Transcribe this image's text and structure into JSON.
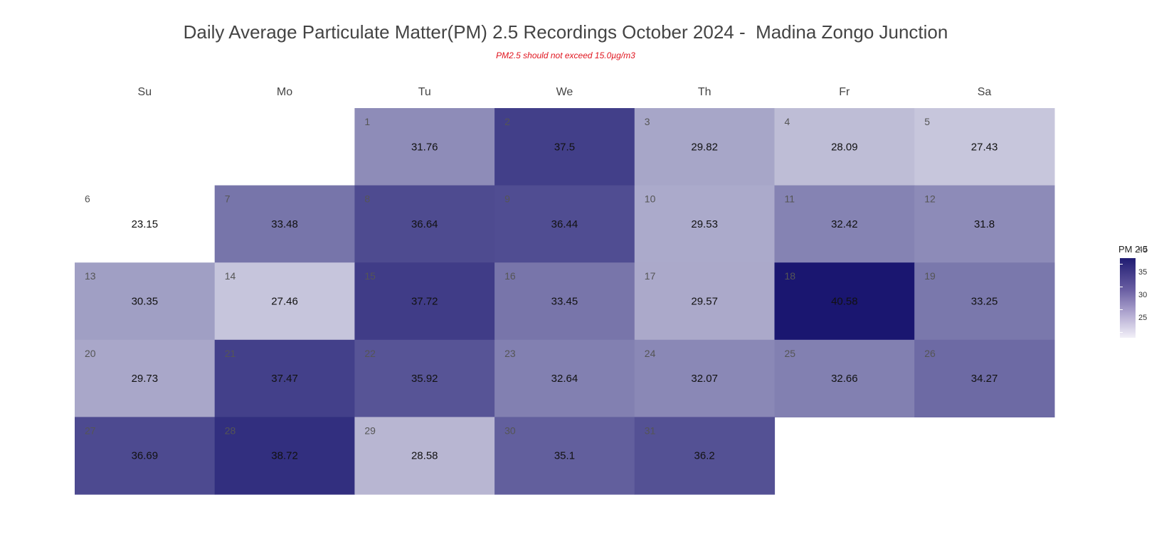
{
  "chart_data": {
    "type": "heatmap",
    "title": "Daily Average Particulate Matter(PM) 2.5 Recordings October 2024 -  Madina Zongo Junction",
    "subtitle": "PM2.5 should not exceed 15.0µg/m3",
    "weekdays": [
      "Su",
      "Mo",
      "Tu",
      "We",
      "Th",
      "Fr",
      "Sa"
    ],
    "first_weekday_index": 2,
    "days": [
      {
        "day": "1",
        "value": 31.76
      },
      {
        "day": "2",
        "value": 37.5
      },
      {
        "day": "3",
        "value": 29.82
      },
      {
        "day": "4",
        "value": 28.09
      },
      {
        "day": "5",
        "value": 27.43
      },
      {
        "day": "6",
        "value": 23.15
      },
      {
        "day": "7",
        "value": 33.48
      },
      {
        "day": "8",
        "value": 36.64
      },
      {
        "day": "9",
        "value": 36.44
      },
      {
        "day": "10",
        "value": 29.53
      },
      {
        "day": "11",
        "value": 32.42
      },
      {
        "day": "12",
        "value": 31.8
      },
      {
        "day": "13",
        "value": 30.35
      },
      {
        "day": "14",
        "value": 27.46
      },
      {
        "day": "15",
        "value": 37.72
      },
      {
        "day": "16",
        "value": 33.45
      },
      {
        "day": "17",
        "value": 29.57
      },
      {
        "day": "18",
        "value": 40.58
      },
      {
        "day": "19",
        "value": 33.25
      },
      {
        "day": "20",
        "value": 29.73
      },
      {
        "day": "21",
        "value": 37.47
      },
      {
        "day": "22",
        "value": 35.92
      },
      {
        "day": "23",
        "value": 32.64
      },
      {
        "day": "24",
        "value": 32.07
      },
      {
        "day": "25",
        "value": 32.66
      },
      {
        "day": "26",
        "value": 34.27
      },
      {
        "day": "27",
        "value": 36.69
      },
      {
        "day": "28",
        "value": 38.72
      },
      {
        "day": "29",
        "value": 28.58
      },
      {
        "day": "30",
        "value": 35.1
      },
      {
        "day": "31",
        "value": 36.2
      }
    ],
    "color_scale": {
      "low": "#ffffff",
      "high": "#1a1670",
      "range": [
        23.15,
        40.58
      ]
    },
    "legend": {
      "title": "PM 2.5",
      "ticks": [
        "40",
        "35",
        "30",
        "25"
      ],
      "placement": "right"
    }
  }
}
